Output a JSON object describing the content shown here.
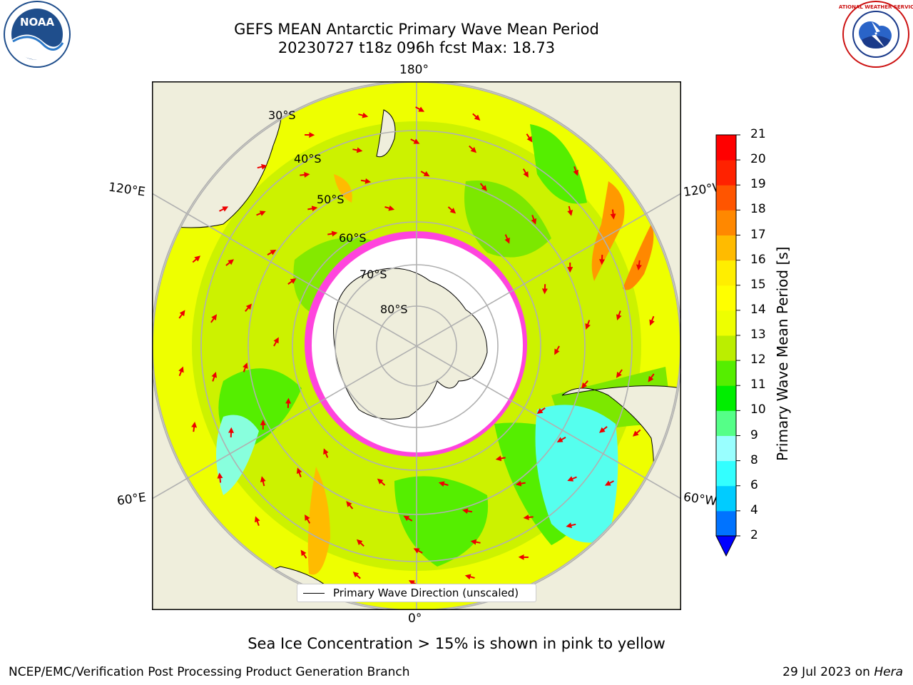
{
  "title": {
    "line1": "GEFS MEAN Antarctic Primary Wave Mean Period",
    "line2": "20230727 t18z 096h fcst   Max: 18.73"
  },
  "logos": {
    "left": "noaa-logo",
    "left_text": "NOAA",
    "right": "nws-logo",
    "right_text": "NATIONAL WEATHER SERVICE"
  },
  "map": {
    "projection": "south-polar-stereographic",
    "lon_labels": {
      "top": "180°",
      "bottom": "0°",
      "left_upper": "120°E",
      "left_lower": "60°E",
      "right_upper": "120°W",
      "right_lower": "60°W"
    },
    "lat_labels": [
      "30°S",
      "40°S",
      "50°S",
      "60°S",
      "70°S",
      "80°S"
    ],
    "legend": "Primary Wave Direction (unscaled)",
    "colors": {
      "land": "#efeedc",
      "ice_free": "#ffffff",
      "sea_ice": "#ff44dd",
      "arrow": "#ee0000",
      "grid": "#b0b0b0"
    }
  },
  "colorbar": {
    "label": "Primary Wave Mean Period [s]",
    "ticks": [
      "2",
      "4",
      "6",
      "8",
      "9",
      "10",
      "11",
      "12",
      "13",
      "14",
      "15",
      "16",
      "17",
      "18",
      "19",
      "20",
      "21"
    ],
    "colors": [
      "#0073ff",
      "#00ccff",
      "#33ffff",
      "#99ffff",
      "#55ff88",
      "#00ee00",
      "#55ee00",
      "#bbee00",
      "#eeff00",
      "#ffff00",
      "#ffee00",
      "#ffbb00",
      "#ff8800",
      "#ff5500",
      "#ff2200",
      "#ff0000"
    ],
    "under_color": "#0000ff"
  },
  "subtitle": "Sea Ice Concentration > 15% is shown in pink to yellow",
  "footer": {
    "left": "NCEP/EMC/Verification Post Processing Product Generation Branch",
    "right_date": "29 Jul 2023 on ",
    "right_host": "Hera"
  }
}
